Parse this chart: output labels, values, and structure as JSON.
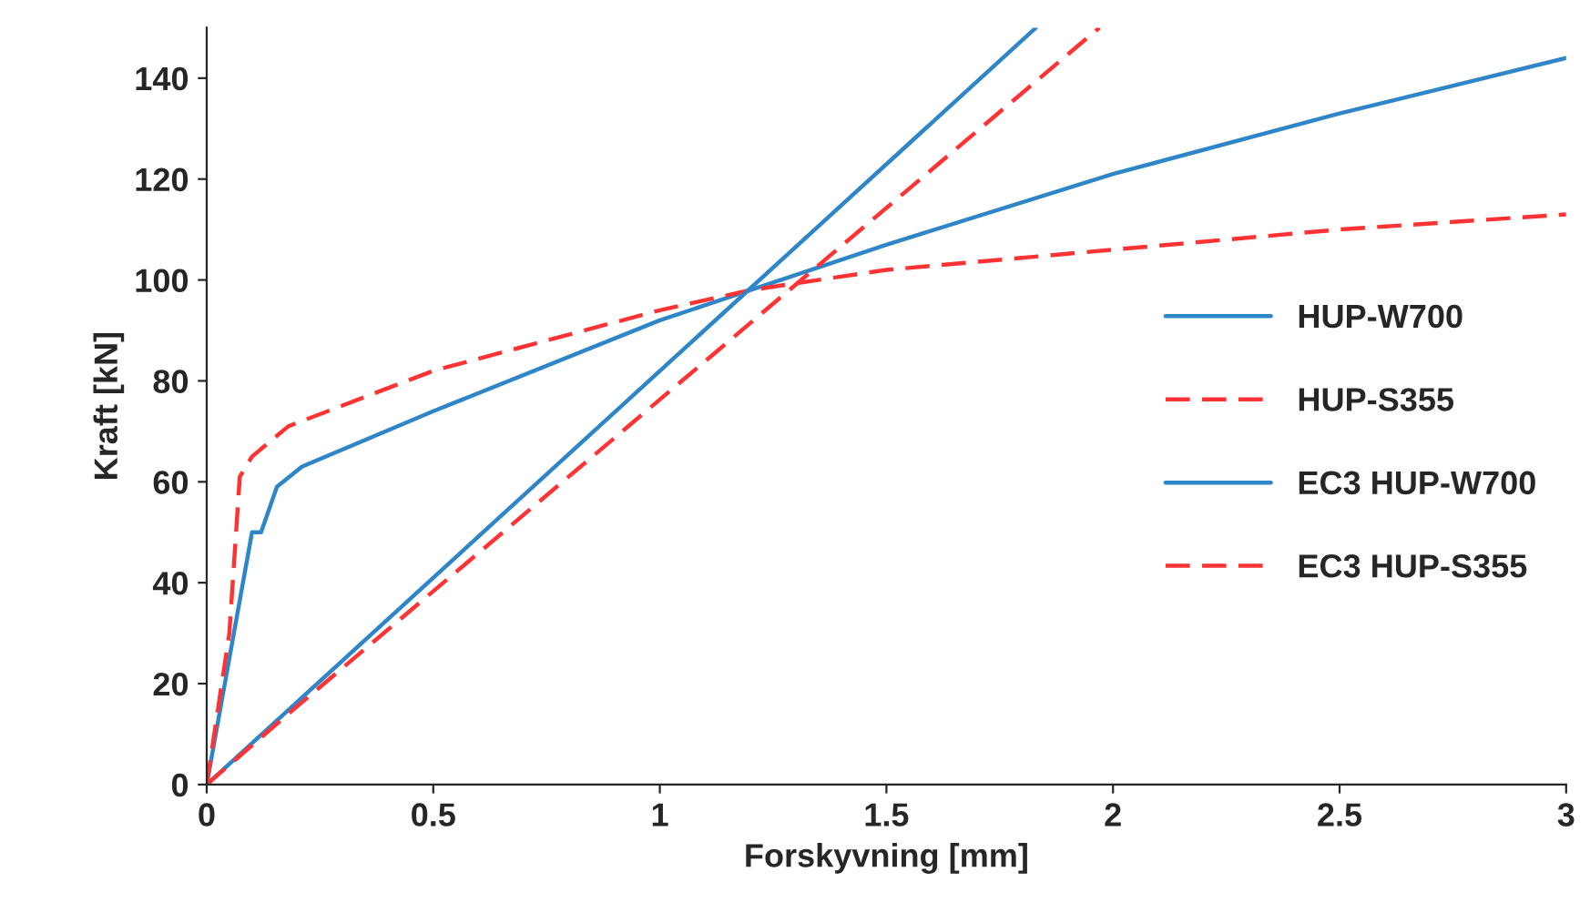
{
  "chart_data": {
    "type": "line",
    "xlabel": "Forskyvning [mm]",
    "ylabel": "Kraft [kN]",
    "xlim": [
      0,
      3
    ],
    "xticks": [
      0,
      0.5,
      1,
      1.5,
      2,
      2.5,
      3
    ],
    "ylim": [
      0,
      150
    ],
    "yticks": [
      0,
      20,
      40,
      60,
      80,
      100,
      120,
      140
    ],
    "grid": false,
    "legend": "right",
    "marker": "none",
    "series": [
      {
        "name": "HUP-W700",
        "color": "#2e86c9",
        "line_style": "solid",
        "x": [
          0,
          0.1,
          0.12,
          0.1,
          0.12,
          0.155,
          0.21,
          0.5,
          1.0,
          1.2,
          1.5,
          2.0,
          2.5,
          3.0
        ],
        "values": [
          0,
          50,
          50,
          50,
          50,
          59,
          63,
          74,
          92,
          98,
          107,
          121,
          133,
          144
        ]
      },
      {
        "name": "HUP-S355",
        "color": "#ff3333",
        "line_style": "dashed",
        "x": [
          0,
          0.05,
          0.073,
          0.1,
          0.18,
          0.5,
          1.0,
          1.2,
          1.5,
          2.0,
          2.5,
          3.0
        ],
        "values": [
          0,
          30,
          61,
          65,
          71,
          82,
          94,
          98,
          102,
          106,
          110,
          113
        ]
      },
      {
        "name": "EC3 HUP-W700",
        "color": "#2e86c9",
        "line_style": "solid",
        "x": [
          0,
          1.83
        ],
        "values": [
          0,
          150
        ]
      },
      {
        "name": "EC3 HUP-S355",
        "color": "#ff3333",
        "line_style": "dashed",
        "x": [
          0,
          0.18,
          1.97
        ],
        "values": [
          0,
          14,
          150
        ]
      }
    ]
  }
}
